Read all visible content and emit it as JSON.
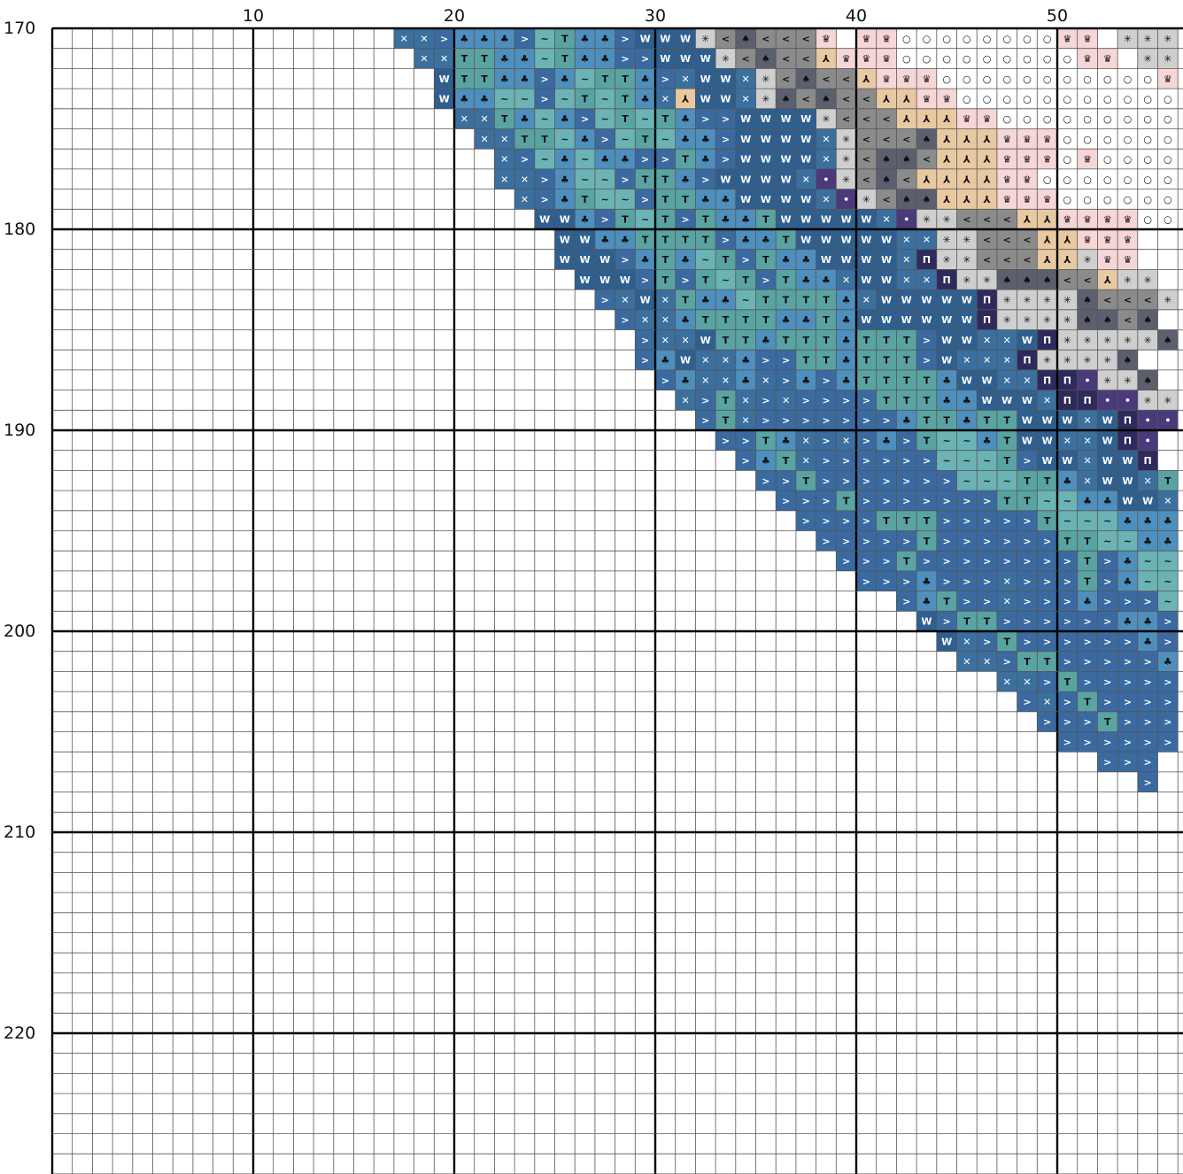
{
  "x_axis_labels": [
    "10",
    "20",
    "30",
    "40",
    "50"
  ],
  "y_axis_labels": [
    "170",
    "180",
    "190",
    "200",
    "210",
    "220"
  ],
  "colors": {
    "grid_line": "#555555",
    "major_line": "#000000",
    "palette": {
      "A": "#3a6aa0",
      "B": "#4e8fbd",
      "C": "#5aa3a3",
      "D": "#6bb3b5",
      "E": "#9fd0d6",
      "F": "#2f5f8f",
      "G": "#3b6f9e",
      "H": "#5c5f6e",
      "I": "#8b8b8b",
      "J": "#cfcfcf",
      "K": "#e9c9a1",
      "L": "#f6d6d6",
      "M": "#ffffff",
      "N": "#4a3a7a",
      "O": "#2e2a5c"
    }
  },
  "chart_data": {
    "type": "cross-stitch-pattern",
    "x_range_visible_columns": [
      1,
      56
    ],
    "y_range_visible_rows": [
      170,
      226
    ],
    "origin_column_label": "10",
    "major_every": 10,
    "legend_symbols": {
      "A": ">",
      "B": "♣",
      "C": "T",
      "D": "~",
      "E": "T",
      "F": "W",
      "G": "✕",
      "H": "♠",
      "I": "<",
      "J": "✳",
      "K": "⅄",
      "L": "♛",
      "M": "○",
      "N": "•",
      "O": "Π"
    },
    "rows": [
      {
        "row": 170,
        "start": 18,
        "cells": "GGABBBADCBBAFFFJIHIIIL LLMMMMMMMMLL.JJJH"
      },
      {
        "row": 171,
        "start": 19,
        "cells": "GGCCBBDCBBAAFFFJIHIIKLLLMMMMMMMMMLL.JJJ"
      },
      {
        "row": 172,
        "start": 20,
        "cells": "FCCBBABDCCBAGFFGJIHIIKLLLMMMMMMMMMMMLJ"
      },
      {
        "row": 173,
        "start": 20,
        "cells": "FBBDDADCDCBGKFFGJHIHIIKKLLMMMMMMMMMMMLL"
      },
      {
        "row": 174,
        "start": 21,
        "cells": "GGCBDBADCDCBAAFFFFJIIIKKKLLMMMMMMMMMMMM"
      },
      {
        "row": 175,
        "start": 22,
        "cells": "GGCCDBADCDBBAFFFFGJIIIHKKKLLLMMMMMMMMMM"
      },
      {
        "row": 176,
        "start": 23,
        "cells": "GADBDBBAACBAFFFFGJIHHIKKKLLLMLMMMMMMMM"
      },
      {
        "row": 177,
        "start": 23,
        "cells": "GGABDDACCBAFFFFGNJIHIKKKKLLMMMMMMM"
      },
      {
        "row": 178,
        "start": 24,
        "cells": "GABCDDACCBBFFFFGNJIHHKKKLLLMMMMMMM"
      },
      {
        "row": 179,
        "start": 25,
        "cells": "FFBACDCACBBCFFFFFGNJJIIIKKLLLLMM"
      },
      {
        "row": 180,
        "start": 26,
        "cells": "FFBBCCCCABBCFFFFFGGJJIIIKKLLL"
      },
      {
        "row": 181,
        "start": 26,
        "cells": "FFFABCBDCACBBFFFFGOJJIIIKKJLL"
      },
      {
        "row": 182,
        "start": 27,
        "cells": "FFFACACDCACBBGFFGGOJJHHHIIKJJ"
      },
      {
        "row": 183,
        "start": 28,
        "cells": "AGFGCBBDCCCCBGFFFFFOJJJJHIIIJ"
      },
      {
        "row": 184,
        "start": 29,
        "cells": "AGGBCCCCBBCBFFFFFFOJJJJHHIH"
      },
      {
        "row": 185,
        "start": 30,
        "cells": "AGGFCCBCCCBCCCAFFGGFOJJJJJH"
      },
      {
        "row": 186,
        "start": 30,
        "cells": "ABFGGBAACCBCCCAFGGGOJJJJH"
      },
      {
        "row": 187,
        "start": 31,
        "cells": "ABGGBGABABCCCCBFFGGOONJJH"
      },
      {
        "row": 188,
        "start": 32,
        "cells": "GACGAGAAAACCCBBFFFGOONNJJ"
      },
      {
        "row": 189,
        "start": 33,
        "cells": "ACGAAAAAAABCCBCCFFFGFONN"
      },
      {
        "row": 190,
        "start": 34,
        "cells": "AACBGAGABACDDBCFFGGFON"
      },
      {
        "row": 191,
        "start": 35,
        "cells": "ABCGAAAAAADDDCAFFGFFO"
      },
      {
        "row": 192,
        "start": 36,
        "cells": "AACAAAAAAADDDCCBGFFGC"
      },
      {
        "row": 193,
        "start": 37,
        "cells": "AAACAAAAAAACCDDBBFFGA"
      },
      {
        "row": 194,
        "start": 38,
        "cells": "AAAACCCAAAAACDDDBBBF"
      },
      {
        "row": 195,
        "start": 39,
        "cells": "AAAAACAAAAAACCDDBBBB"
      },
      {
        "row": 196,
        "start": 40,
        "cells": "AAACAAAAAAAACABDDBD"
      },
      {
        "row": 197,
        "start": 41,
        "cells": "AAABAAAGAAACABDDBD"
      },
      {
        "row": 198,
        "start": 43,
        "cells": "ABCAAGAAABAAAD"
      },
      {
        "row": 199,
        "start": 44,
        "cells": "FACCAAAAAABBAA"
      },
      {
        "row": 200,
        "start": 45,
        "cells": "FGACAAAAAABAA"
      },
      {
        "row": 201,
        "start": 46,
        "cells": "GGACCAAAAABA"
      },
      {
        "row": 202,
        "start": 48,
        "cells": "GGACAAAAAB"
      },
      {
        "row": 203,
        "start": 49,
        "cells": "AGACAAAAA"
      },
      {
        "row": 204,
        "start": 50,
        "cells": "AAACAAA"
      },
      {
        "row": 205,
        "start": 51,
        "cells": "AAAAAA"
      },
      {
        "row": 206,
        "start": 53,
        "cells": "AAA"
      },
      {
        "row": 207,
        "start": 55,
        "cells": "A"
      }
    ]
  }
}
